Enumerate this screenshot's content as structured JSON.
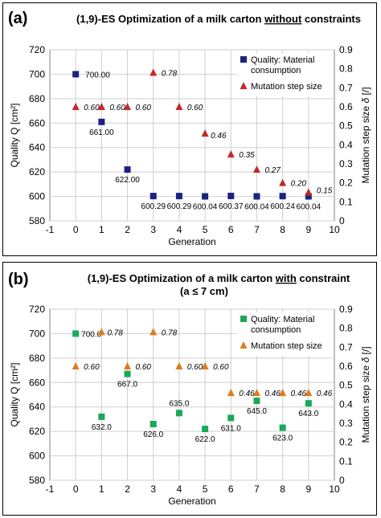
{
  "chart_data": [
    {
      "type": "scatter",
      "panel_label": "(a)",
      "title_parts": [
        "(1,9)-ES Optimization of a milk carton ",
        "without",
        " constraints"
      ],
      "title_line2": "",
      "xlabel": "Generation",
      "ylabel": "Quality  Q [cm²]",
      "y2label_parts": [
        "Mutation step size  ",
        "δ",
        "  [/]"
      ],
      "xlim": [
        -1,
        10
      ],
      "ylim": [
        580,
        720
      ],
      "y2lim": [
        0,
        0.9
      ],
      "xticks": [
        "-1",
        "0",
        "1",
        "2",
        "3",
        "4",
        "5",
        "6",
        "7",
        "8",
        "9",
        "10"
      ],
      "yticks": [
        "580",
        "600",
        "620",
        "640",
        "660",
        "680",
        "700",
        "720"
      ],
      "y2ticks": [
        "0",
        "0.1",
        "0.2",
        "0.3",
        "0.4",
        "0.5",
        "0.6",
        "0.7",
        "0.8",
        "0.9"
      ],
      "grid": true,
      "legend_position": "top-right",
      "series": [
        {
          "name": "Quality: Material consumption",
          "legend_lines": [
            "Quality: Material",
            "consumption"
          ],
          "color": "#1a237e",
          "marker": "square",
          "axis": "left",
          "x": [
            0,
            1,
            2,
            3,
            4,
            5,
            6,
            7,
            8,
            9
          ],
          "y": [
            700,
            661,
            622,
            600.29,
            600.29,
            600.04,
            600.37,
            600.04,
            600.24,
            600.04
          ],
          "labels": [
            "700.00",
            "661.00",
            "622.00",
            "600.29",
            "600.29",
            "600.04",
            "600.37",
            "600.04",
            "600.24",
            "600.04"
          ]
        },
        {
          "name": "Mutation step size",
          "legend_lines": [
            "Mutation step size"
          ],
          "color": "#c62828",
          "marker": "triangle",
          "axis": "right",
          "x": [
            0,
            1,
            2,
            3,
            4,
            5,
            6,
            7,
            8,
            9
          ],
          "y": [
            0.6,
            0.6,
            0.6,
            0.78,
            0.6,
            0.46,
            0.35,
            0.27,
            0.2,
            0.15
          ],
          "labels": [
            "0.60",
            "0.60",
            "0.60",
            "0.78",
            "0.60",
            "0.46",
            "0.35",
            "0.27",
            "0.20",
            "0.15"
          ]
        }
      ]
    },
    {
      "type": "scatter",
      "panel_label": "(b)",
      "title_parts": [
        "(1,9)-ES Optimization of a milk carton ",
        "with",
        " constraint"
      ],
      "title_line2": "(a ≤ 7 cm)",
      "xlabel": "Generation",
      "ylabel": "Quality  Q [cm²]",
      "y2label_parts": [
        "Mutation step size  ",
        "δ",
        "  [/]"
      ],
      "xlim": [
        -1,
        10
      ],
      "ylim": [
        580,
        720
      ],
      "y2lim": [
        0,
        0.9
      ],
      "xticks": [
        "-1",
        "0",
        "1",
        "2",
        "3",
        "4",
        "5",
        "6",
        "7",
        "8",
        "9",
        "10"
      ],
      "yticks": [
        "580",
        "600",
        "620",
        "640",
        "660",
        "680",
        "700",
        "720"
      ],
      "y2ticks": [
        "0",
        "0.1",
        "0.2",
        "0.3",
        "0.4",
        "0.5",
        "0.6",
        "0.7",
        "0.8",
        "0.9"
      ],
      "grid": true,
      "legend_position": "top-right",
      "series": [
        {
          "name": "Quality: Material consumption",
          "legend_lines": [
            "Quality: Material",
            "consumption"
          ],
          "color": "#1aa85a",
          "marker": "square",
          "axis": "left",
          "x": [
            0,
            1,
            2,
            3,
            4,
            5,
            6,
            7,
            8,
            9
          ],
          "y": [
            700,
            632,
            667,
            626,
            635,
            622,
            631,
            645,
            623,
            643
          ],
          "labels": [
            "700.0",
            "632.0",
            "667.0",
            "626.0",
            "635.0",
            "622.0",
            "631.0",
            "645.0",
            "623.0",
            "643.0"
          ]
        },
        {
          "name": "Mutation step size",
          "legend_lines": [
            "Mutation step size"
          ],
          "color": "#e07b1a",
          "marker": "triangle",
          "axis": "right",
          "x": [
            0,
            1,
            2,
            3,
            4,
            5,
            6,
            7,
            8,
            9
          ],
          "y": [
            0.6,
            0.78,
            0.6,
            0.78,
            0.6,
            0.6,
            0.46,
            0.46,
            0.46,
            0.46
          ],
          "labels": [
            "0.60",
            "0.78",
            "0.60",
            "0.78",
            "0.60",
            "0.60",
            "0.46",
            "0.46",
            "0.46",
            "0.46"
          ]
        }
      ]
    }
  ]
}
